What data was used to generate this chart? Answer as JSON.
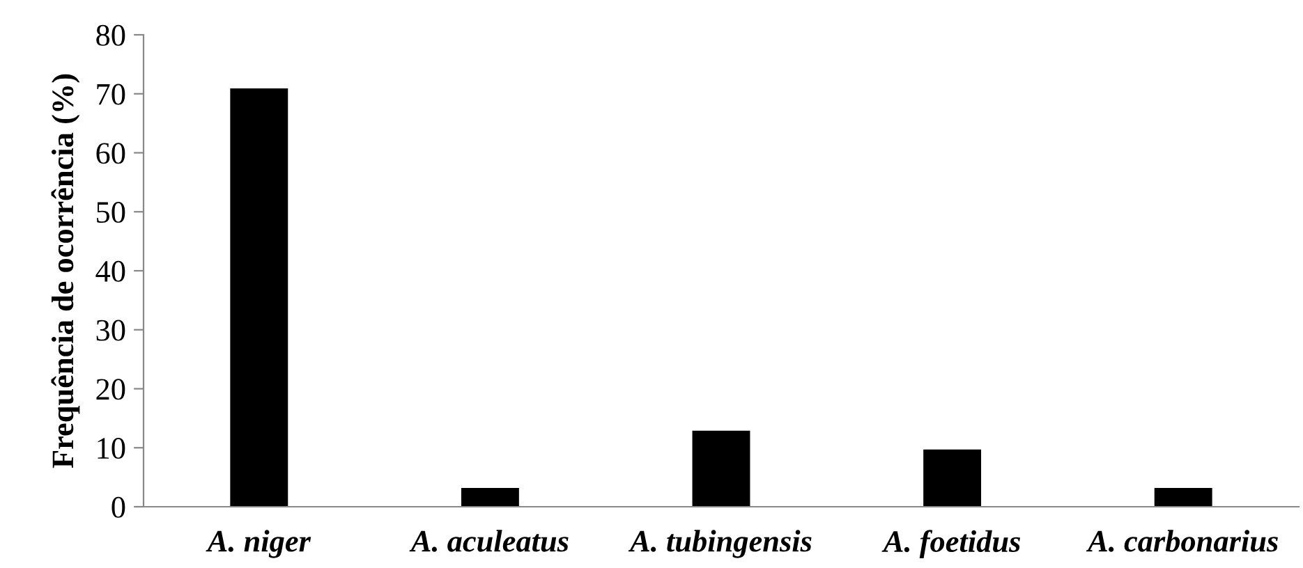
{
  "chart_data": {
    "type": "bar",
    "ylabel": "Frequência de ocorrência (%)",
    "categories": [
      "A. niger",
      "A. aculeatus",
      "A. tubingensis",
      "A. foetidus",
      "A. carbonarius"
    ],
    "values": [
      70.9,
      3.2,
      12.9,
      9.7,
      3.2
    ],
    "color": "#000000",
    "ylim": [
      0,
      80
    ],
    "yticks": [
      0,
      10,
      20,
      30,
      40,
      50,
      60,
      70,
      80
    ],
    "grid": false
  }
}
